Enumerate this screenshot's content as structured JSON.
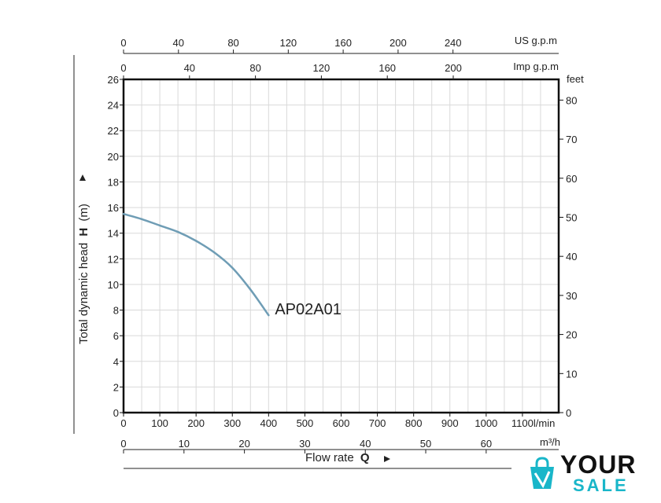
{
  "chart_data": {
    "type": "line",
    "y_axis": {
      "label": "Total dynamic head",
      "symbol": "H",
      "unit": "(m)",
      "range": [
        0,
        26
      ],
      "ticks": [
        0,
        2,
        4,
        6,
        8,
        10,
        12,
        14,
        16,
        18,
        20,
        22,
        24,
        26
      ]
    },
    "y_right_axis": {
      "unit": "feet",
      "ticks": [
        0,
        10,
        20,
        30,
        40,
        50,
        60,
        70,
        80
      ]
    },
    "x_axis": {
      "label": "Flow rate",
      "symbol": "Q",
      "unit": "l/min",
      "range": [
        0,
        1200
      ],
      "ticks": [
        0,
        100,
        200,
        300,
        400,
        500,
        600,
        700,
        800,
        900,
        1000,
        1100
      ],
      "last_tick_text": "1100l/min"
    },
    "x_bottom_m3h_axis": {
      "unit": "m³/h",
      "ticks": [
        0,
        10,
        20,
        30,
        40,
        50,
        60
      ]
    },
    "x_top_us_axis": {
      "unit": "US g.p.m",
      "ticks": [
        0,
        40,
        80,
        120,
        160,
        200,
        240
      ]
    },
    "x_top_imp_axis": {
      "unit": "Imp g.p.m",
      "ticks": [
        0,
        40,
        80,
        120,
        160,
        200
      ]
    },
    "series": [
      {
        "name": "AP02A01",
        "color": "#6f9db5",
        "x": [
          0,
          50,
          100,
          150,
          200,
          250,
          300,
          350,
          400
        ],
        "y": [
          15.5,
          15.1,
          14.6,
          14.1,
          13.4,
          12.5,
          11.3,
          9.6,
          7.6
        ]
      }
    ],
    "grid": true
  },
  "logo": {
    "text_top": "YOUR",
    "text_bottom": "SALE",
    "accent_color": "#19b6c9"
  }
}
